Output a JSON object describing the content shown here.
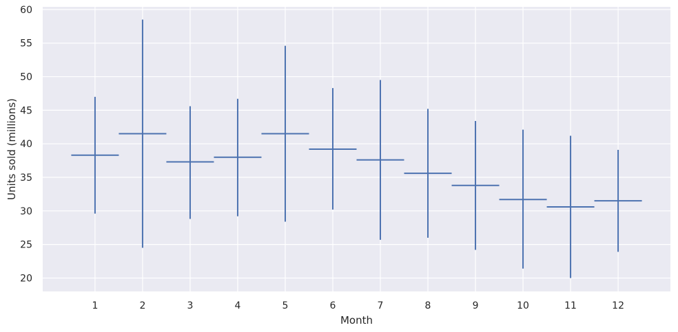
{
  "chart_data": {
    "type": "errorbar",
    "xlabel": "Month",
    "ylabel": "Units sold (millions)",
    "x": [
      1,
      2,
      3,
      4,
      5,
      6,
      7,
      8,
      9,
      10,
      11,
      12
    ],
    "y": [
      38.3,
      41.5,
      37.3,
      38.0,
      41.5,
      39.2,
      37.6,
      35.6,
      33.8,
      31.7,
      30.6,
      31.5
    ],
    "y_low": [
      29.6,
      24.5,
      28.8,
      29.2,
      28.4,
      30.2,
      25.7,
      26.0,
      24.2,
      21.4,
      20.0,
      23.9
    ],
    "y_high": [
      47.0,
      58.5,
      45.6,
      46.7,
      54.6,
      48.3,
      49.5,
      45.2,
      43.4,
      42.1,
      41.2,
      39.1
    ],
    "x_half_width": 0.5,
    "xticks": [
      "1",
      "2",
      "3",
      "4",
      "5",
      "6",
      "7",
      "8",
      "9",
      "10",
      "11",
      "12"
    ],
    "yticks": [
      20,
      25,
      30,
      35,
      40,
      45,
      50,
      55,
      60
    ],
    "xlim": [
      -0.1,
      13.1
    ],
    "ylim": [
      18.0,
      60.4
    ],
    "grid": true,
    "colors": {
      "series": "#4c72b0",
      "plot_background": "#eaeaf2",
      "grid": "#ffffff",
      "text": "#262626"
    }
  }
}
